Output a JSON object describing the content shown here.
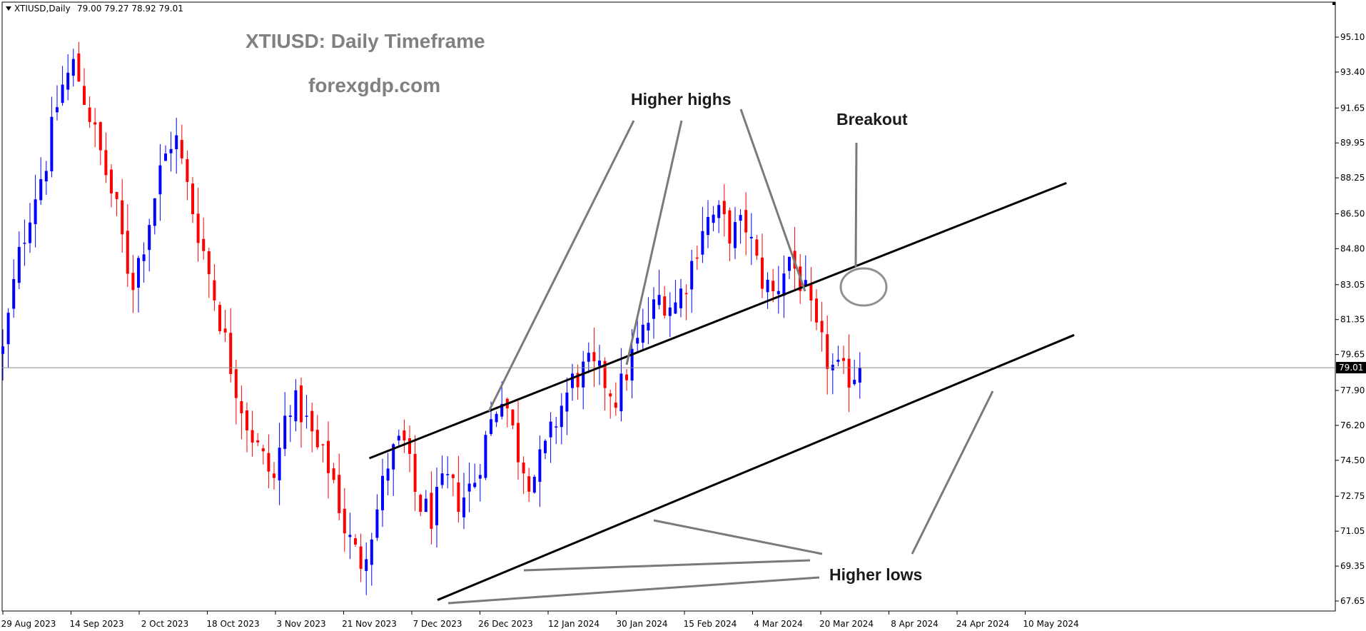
{
  "chart_data": {
    "type": "candlestick",
    "symbol_header": "XTIUSD,Daily",
    "ohlc_header": "79.00 79.27 78.92 79.01",
    "title": "XTIUSD: Daily Timeframe",
    "subtitle": "forexgdp.com",
    "current_price": "79.01",
    "y_axis_ticks": [
      "95.10",
      "93.40",
      "91.65",
      "89.95",
      "88.25",
      "86.50",
      "84.80",
      "83.05",
      "81.35",
      "79.65",
      "77.90",
      "76.20",
      "74.50",
      "72.75",
      "71.05",
      "69.35",
      "67.65"
    ],
    "x_axis_ticks": [
      "29 Aug 2023",
      "14 Sep 2023",
      "2 Oct 2023",
      "18 Oct 2023",
      "3 Nov 2023",
      "21 Nov 2023",
      "7 Dec 2023",
      "26 Dec 2023",
      "12 Jan 2024",
      "30 Jan 2024",
      "15 Feb 2024",
      "4 Mar 2024",
      "20 Mar 2024",
      "8 Apr 2024",
      "24 Apr 2024",
      "10 May 2024"
    ],
    "ylim": [
      67.0,
      96.0
    ],
    "bull_color": "#0000ff",
    "bear_color": "#ff0000",
    "annotations": [
      "Higher highs",
      "Breakout",
      "Higher lows"
    ],
    "channel": {
      "upper": {
        "from": [
          "21 Nov 2023",
          74.6
        ],
        "to": [
          "14 May 2024",
          88.0
        ]
      },
      "lower": {
        "from": [
          "7 Dec 2023",
          67.7
        ],
        "to": [
          "16 May 2024",
          80.6
        ]
      }
    },
    "close_path": [
      79.8,
      84,
      87,
      89,
      92.5,
      93.8,
      91.5,
      89,
      86.5,
      83,
      85.5,
      88.5,
      90.5,
      87.5,
      84.8,
      82,
      79,
      76.5,
      74.8,
      73.5,
      77.5,
      76.8,
      75,
      74,
      71,
      69.5,
      71.5,
      74.5,
      75.5,
      72.5,
      71.8,
      73.5,
      72.5,
      73.5,
      76,
      78,
      75,
      73.5,
      75,
      77,
      78.5,
      79,
      78.5,
      77.5,
      79.5,
      81,
      82.5,
      82,
      83.5,
      86,
      86.5,
      85.5,
      86,
      83.5,
      82.5,
      84.5,
      83,
      80.5,
      79,
      78.5,
      79.0
    ]
  }
}
